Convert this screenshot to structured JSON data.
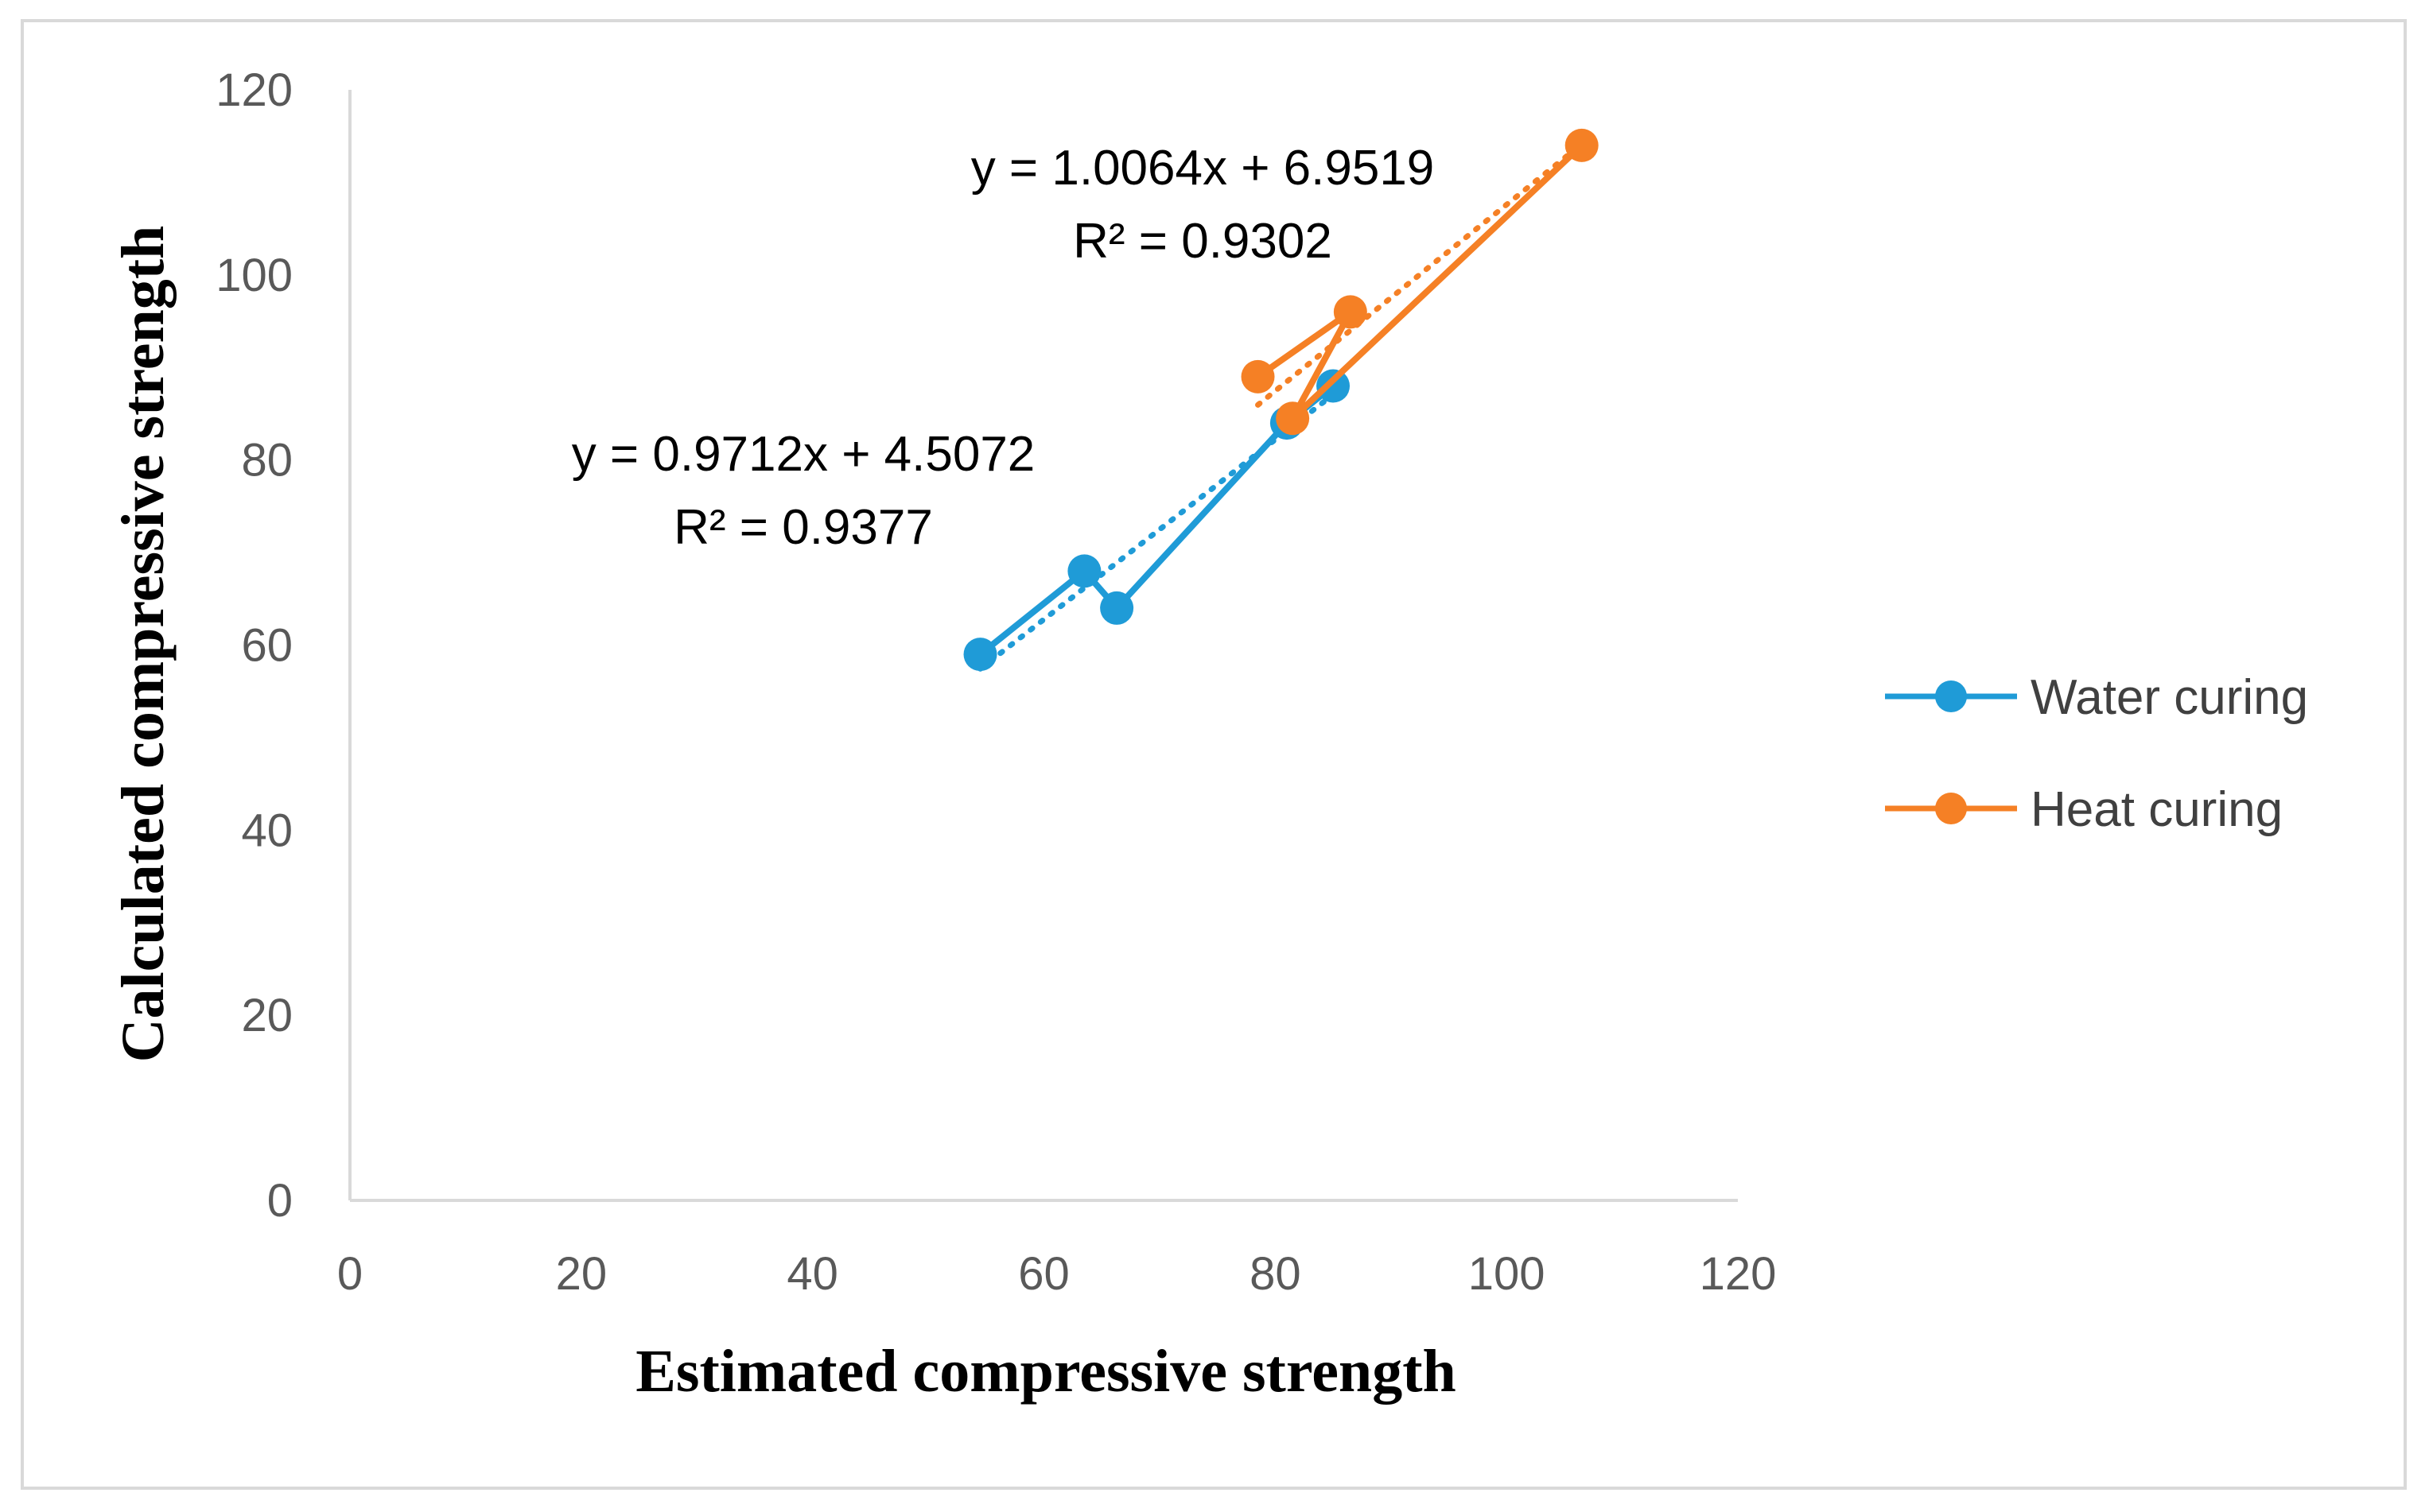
{
  "chart_data": {
    "type": "scatter",
    "title": "",
    "xlabel": "Estimated compressive strength",
    "ylabel": "Calculated compressive strength",
    "xlim": [
      0,
      120
    ],
    "ylim": [
      0,
      120
    ],
    "xticks": [
      0,
      20,
      40,
      60,
      80,
      100,
      120
    ],
    "yticks": [
      0,
      20,
      40,
      60,
      80,
      100,
      120
    ],
    "grid": false,
    "legend_position": "right",
    "series": [
      {
        "name": "Water curing",
        "color": "#1f9bd7",
        "points": [
          [
            54.5,
            59
          ],
          [
            63.5,
            68
          ],
          [
            66.3,
            64
          ],
          [
            81,
            84
          ],
          [
            85,
            88
          ]
        ],
        "trendline": {
          "slope": 0.9712,
          "intercept": 4.5072,
          "x_range": [
            54.5,
            85
          ]
        },
        "equation": "y = 0.9712x + 4.5072",
        "r_squared": "R² = 0.9377"
      },
      {
        "name": "Heat curing",
        "color": "#f58025",
        "points": [
          [
            78.5,
            89
          ],
          [
            86.5,
            96
          ],
          [
            81.5,
            84.5
          ],
          [
            106.5,
            114
          ]
        ],
        "trendline": {
          "slope": 1.0064,
          "intercept": 6.9519,
          "x_range": [
            78.5,
            106.5
          ]
        },
        "equation": "y = 1.0064x + 6.9519",
        "r_squared": "R² = 0.9302"
      }
    ]
  }
}
